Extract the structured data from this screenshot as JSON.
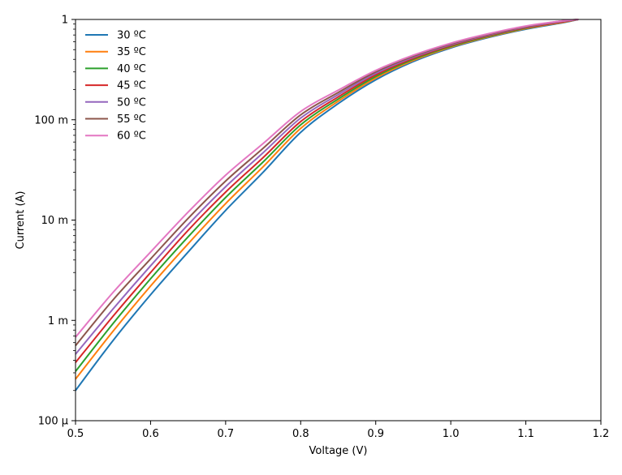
{
  "chart_data": {
    "type": "line",
    "title": "",
    "xlabel": "Voltage (V)",
    "ylabel": "Current (A)",
    "xlim": [
      0.5,
      1.2
    ],
    "ylim": [
      0.0001,
      1
    ],
    "yscale": "log",
    "grid": false,
    "legend_position": "top-left",
    "xticks": [
      {
        "value": 0.5,
        "label": "0.5"
      },
      {
        "value": 0.6,
        "label": "0.6"
      },
      {
        "value": 0.7,
        "label": "0.7"
      },
      {
        "value": 0.8,
        "label": "0.8"
      },
      {
        "value": 0.9,
        "label": "0.9"
      },
      {
        "value": 1.0,
        "label": "1.0"
      },
      {
        "value": 1.1,
        "label": "1.1"
      },
      {
        "value": 1.2,
        "label": "1.2"
      }
    ],
    "yticks": [
      {
        "value": 0.0001,
        "label": "100 µ"
      },
      {
        "value": 0.001,
        "label": "1 m"
      },
      {
        "value": 0.01,
        "label": "10 m"
      },
      {
        "value": 0.1,
        "label": "100 m"
      },
      {
        "value": 1,
        "label": "1"
      }
    ],
    "x": [
      0.5,
      0.55,
      0.6,
      0.65,
      0.7,
      0.75,
      0.8,
      0.85,
      0.9,
      0.95,
      1.0,
      1.05,
      1.1,
      1.15,
      1.17
    ],
    "series": [
      {
        "name": "30 ºC",
        "color": "#1f77b4",
        "values": [
          0.0002,
          0.00063,
          0.0018,
          0.0048,
          0.0125,
          0.03,
          0.075,
          0.145,
          0.25,
          0.38,
          0.52,
          0.66,
          0.8,
          0.93,
          1.0
        ]
      },
      {
        "name": "35 ºC",
        "color": "#ff7f0e",
        "values": [
          0.00026,
          0.00078,
          0.0022,
          0.0058,
          0.0146,
          0.034,
          0.082,
          0.153,
          0.26,
          0.39,
          0.53,
          0.67,
          0.81,
          0.94,
          1.0
        ]
      },
      {
        "name": "40 ºC",
        "color": "#2ca02c",
        "values": [
          0.00031,
          0.00093,
          0.0026,
          0.0068,
          0.0168,
          0.038,
          0.089,
          0.161,
          0.27,
          0.4,
          0.54,
          0.68,
          0.82,
          0.95,
          1.0
        ]
      },
      {
        "name": "45 ºC",
        "color": "#d62728",
        "values": [
          0.00038,
          0.0011,
          0.003,
          0.0079,
          0.019,
          0.042,
          0.096,
          0.169,
          0.28,
          0.41,
          0.55,
          0.69,
          0.83,
          0.95,
          1.0
        ]
      },
      {
        "name": "50 ºC",
        "color": "#9467bd",
        "values": [
          0.00046,
          0.0013,
          0.0035,
          0.009,
          0.0215,
          0.047,
          0.104,
          0.178,
          0.29,
          0.42,
          0.56,
          0.7,
          0.84,
          0.96,
          1.0
        ]
      },
      {
        "name": "55 ºC",
        "color": "#8c564b",
        "values": [
          0.00056,
          0.0016,
          0.0041,
          0.0104,
          0.0245,
          0.052,
          0.112,
          0.187,
          0.3,
          0.43,
          0.57,
          0.71,
          0.85,
          0.97,
          1.0
        ]
      },
      {
        "name": "60 ºC",
        "color": "#e377c2",
        "values": [
          0.00068,
          0.0019,
          0.0048,
          0.012,
          0.028,
          0.058,
          0.121,
          0.197,
          0.31,
          0.44,
          0.58,
          0.72,
          0.86,
          0.97,
          1.0
        ]
      }
    ]
  }
}
